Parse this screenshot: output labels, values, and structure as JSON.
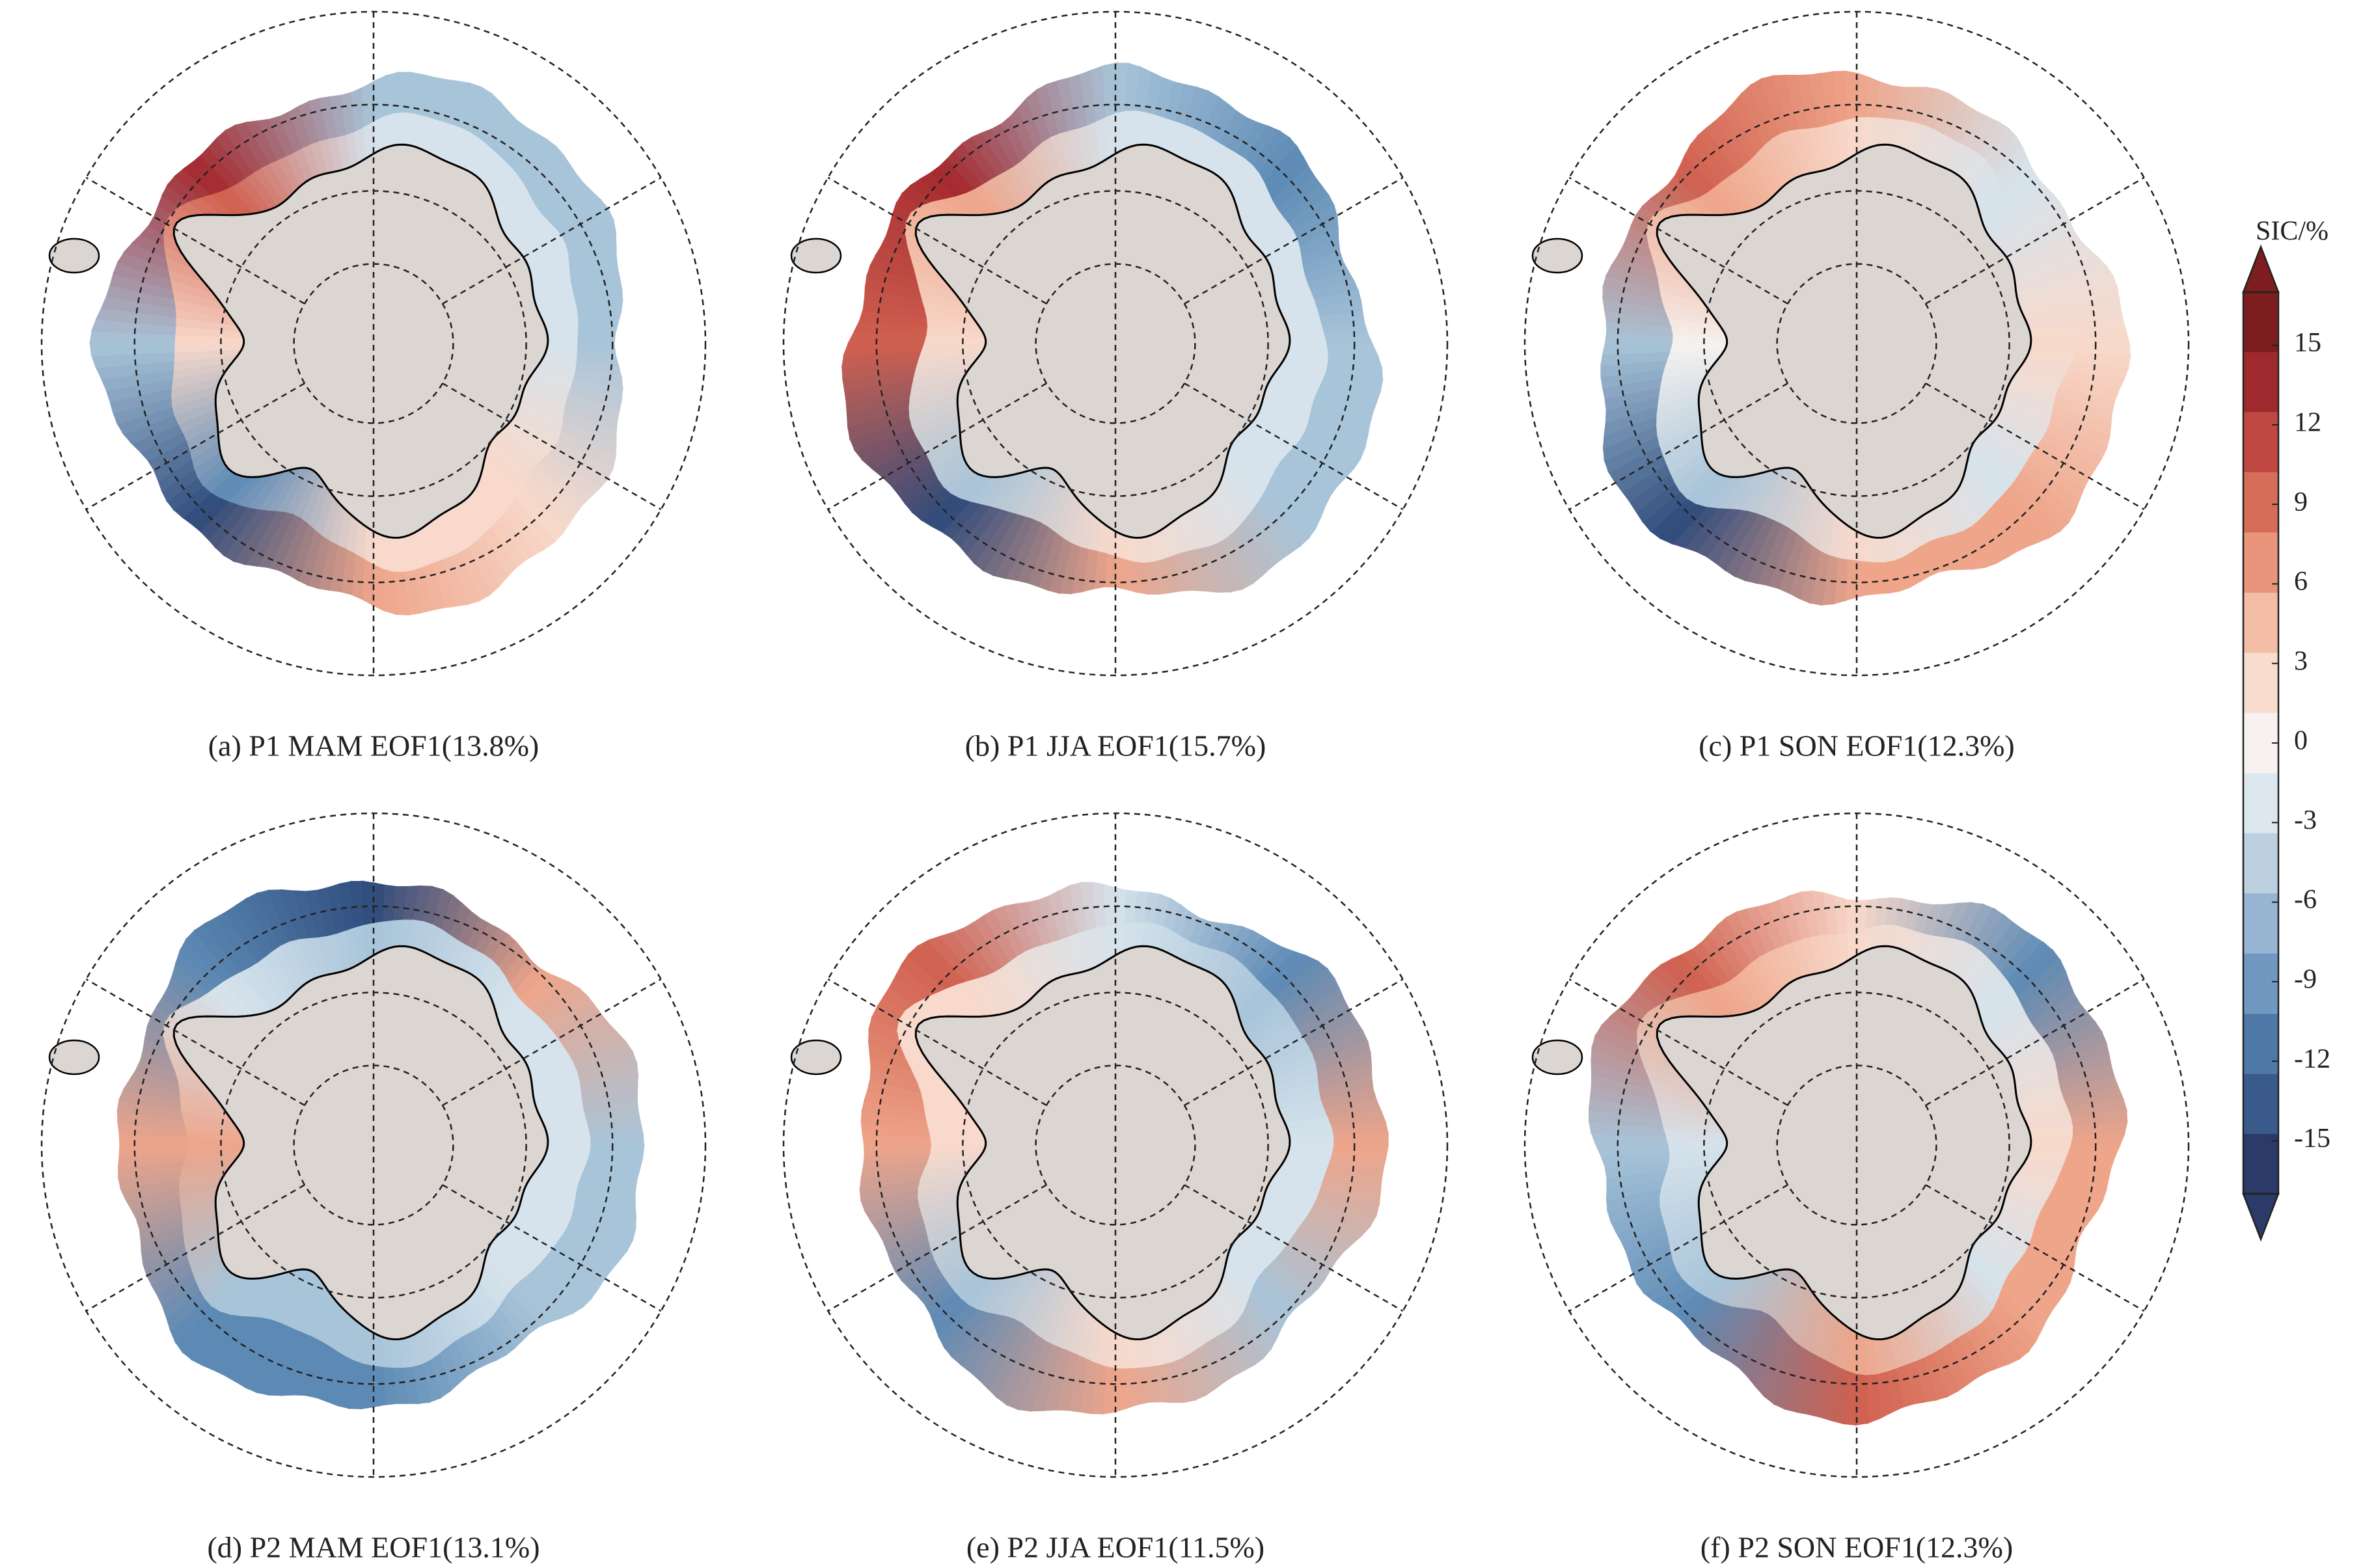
{
  "panels": [
    {
      "caption": "(a) P1 MAM EOF1(13.8%)"
    },
    {
      "caption": "(b) P1 JJA EOF1(15.7%)"
    },
    {
      "caption": "(c) P1 SON EOF1(12.3%)"
    },
    {
      "caption": "(d) P2 MAM EOF1(13.1%)"
    },
    {
      "caption": "(e) P2 JJA EOF1(11.5%)"
    },
    {
      "caption": "(f) P2 SON EOF1(12.3%)"
    }
  ],
  "colorbar": {
    "label": "SIC/%",
    "lim": [
      -17,
      17
    ],
    "ticks": [
      15,
      12,
      9,
      6,
      3,
      0,
      -3,
      -6,
      -9,
      -12,
      -15
    ],
    "colors": [
      "#2b3a66",
      "#3a5a8c",
      "#4f7aa8",
      "#7098c0",
      "#97b5d2",
      "#bcd0e0",
      "#dde7ee",
      "#f7f2ef",
      "#f8dccd",
      "#f3bca5",
      "#e8957c",
      "#d66d59",
      "#bf4842",
      "#9e2a2d",
      "#7d1d20"
    ]
  }
}
